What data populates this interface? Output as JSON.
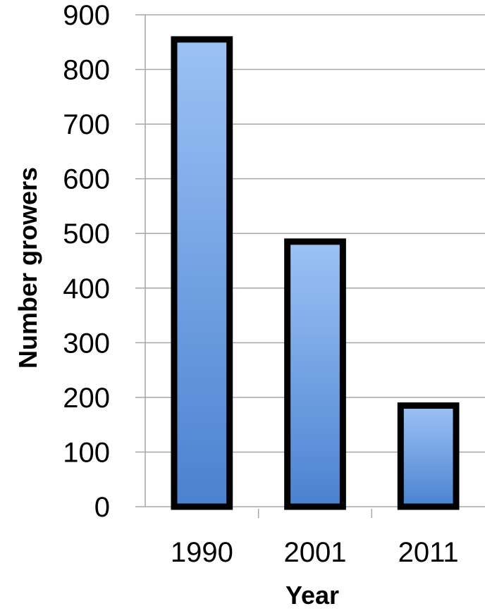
{
  "chart_data": {
    "type": "bar",
    "categories": [
      "1990",
      "2001",
      "2011"
    ],
    "values": [
      855,
      485,
      185
    ],
    "title": "",
    "xlabel": "Year",
    "ylabel": "Number growers",
    "ylim": [
      0,
      900
    ],
    "yticks": [
      0,
      100,
      200,
      300,
      400,
      500,
      600,
      700,
      800,
      900
    ],
    "grid": true,
    "legend": "none",
    "colors": {
      "bar_top": "#9cc2f5",
      "bar_bottom": "#4a82d0",
      "bar_outline": "#000000",
      "gridline": "#a6a6a6"
    }
  }
}
